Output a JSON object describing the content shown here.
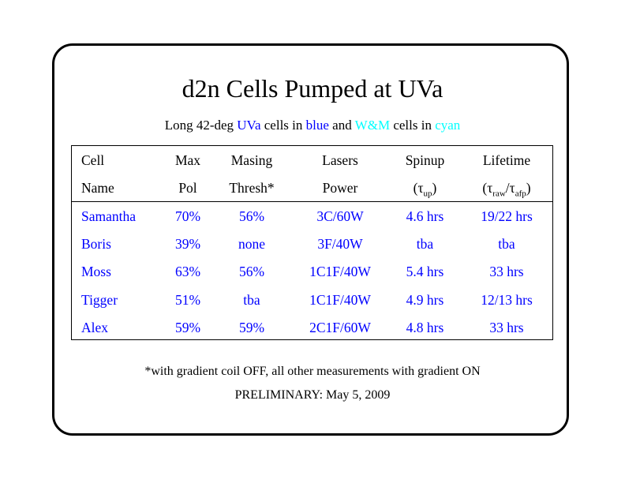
{
  "title": "d2n Cells Pumped at UVa",
  "subtitle": {
    "part1": "Long 42-deg ",
    "uva": "UVa",
    "part2": " cells in ",
    "blue_word": "blue",
    "part3": " and ",
    "wm": "W&M",
    "part4": " cells in ",
    "cyan_word": "cyan"
  },
  "colors": {
    "uva_cells": "#0000ff",
    "wm_cells": "#00ffff",
    "text": "#000000"
  },
  "table": {
    "header_row1": [
      "Cell",
      "Max",
      "Masing",
      "Lasers",
      "Spinup",
      "Lifetime"
    ],
    "header_row2": {
      "name": "Name",
      "pol": "Pol",
      "thresh": "Thresh*",
      "power": "Power",
      "spinup_open": "(τ",
      "spinup_sub": "up",
      "spinup_close": ")",
      "life_open": "(τ",
      "life_sub1": "raw",
      "life_mid": "/τ",
      "life_sub2": "afp",
      "life_close": ")"
    },
    "rows": [
      [
        "Samantha",
        "70%",
        "56%",
        "3C/60W",
        "4.6 hrs",
        "19/22 hrs"
      ],
      [
        "Boris",
        "39%",
        "none",
        "3F/40W",
        "tba",
        "tba"
      ],
      [
        "Moss",
        "63%",
        "56%",
        "1C1F/40W",
        "5.4 hrs",
        "33 hrs"
      ],
      [
        "Tigger",
        "51%",
        "tba",
        "1C1F/40W",
        "4.9 hrs",
        "12/13 hrs"
      ],
      [
        "Alex",
        "59%",
        "59%",
        "2C1F/60W",
        "4.8 hrs",
        "33 hrs"
      ]
    ]
  },
  "footnote": "*with gradient coil OFF, all other measurements with gradient ON",
  "preliminary": "PRELIMINARY: May 5, 2009"
}
